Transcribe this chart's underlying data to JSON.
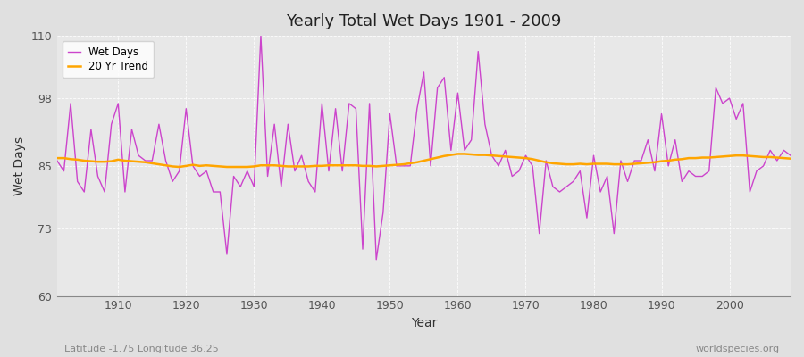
{
  "title": "Yearly Total Wet Days 1901 - 2009",
  "xlabel": "Year",
  "ylabel": "Wet Days",
  "xlim": [
    1901,
    2009
  ],
  "ylim": [
    60,
    110
  ],
  "yticks": [
    60,
    73,
    85,
    98,
    110
  ],
  "xticks": [
    1910,
    1920,
    1930,
    1940,
    1950,
    1960,
    1970,
    1980,
    1990,
    2000
  ],
  "bg_color": "#e0e0e0",
  "plot_bg_color": "#e8e8e8",
  "wet_days_color": "#cc44cc",
  "trend_color": "#FFA500",
  "wet_days_label": "Wet Days",
  "trend_label": "20 Yr Trend",
  "footer_left": "Latitude -1.75 Longitude 36.25",
  "footer_right": "worldspecies.org",
  "years": [
    1901,
    1902,
    1903,
    1904,
    1905,
    1906,
    1907,
    1908,
    1909,
    1910,
    1911,
    1912,
    1913,
    1914,
    1915,
    1916,
    1917,
    1918,
    1919,
    1920,
    1921,
    1922,
    1923,
    1924,
    1925,
    1926,
    1927,
    1928,
    1929,
    1930,
    1931,
    1932,
    1933,
    1934,
    1935,
    1936,
    1937,
    1938,
    1939,
    1940,
    1941,
    1942,
    1943,
    1944,
    1945,
    1946,
    1947,
    1948,
    1949,
    1950,
    1951,
    1952,
    1953,
    1954,
    1955,
    1956,
    1957,
    1958,
    1959,
    1960,
    1961,
    1962,
    1963,
    1964,
    1965,
    1966,
    1967,
    1968,
    1969,
    1970,
    1971,
    1972,
    1973,
    1974,
    1975,
    1976,
    1977,
    1978,
    1979,
    1980,
    1981,
    1982,
    1983,
    1984,
    1985,
    1986,
    1987,
    1988,
    1989,
    1990,
    1991,
    1992,
    1993,
    1994,
    1995,
    1996,
    1997,
    1998,
    1999,
    2000,
    2001,
    2002,
    2003,
    2004,
    2005,
    2006,
    2007,
    2008,
    2009
  ],
  "wet_days": [
    86,
    84,
    97,
    82,
    80,
    92,
    83,
    80,
    93,
    97,
    80,
    92,
    87,
    86,
    86,
    93,
    86,
    82,
    84,
    96,
    85,
    83,
    84,
    80,
    80,
    68,
    83,
    81,
    84,
    81,
    110,
    83,
    93,
    81,
    93,
    84,
    87,
    82,
    80,
    97,
    84,
    96,
    84,
    97,
    96,
    69,
    97,
    67,
    76,
    95,
    85,
    85,
    85,
    96,
    103,
    85,
    100,
    102,
    88,
    99,
    88,
    90,
    107,
    93,
    87,
    85,
    88,
    83,
    84,
    87,
    85,
    72,
    86,
    81,
    80,
    81,
    82,
    84,
    75,
    87,
    80,
    83,
    72,
    86,
    82,
    86,
    86,
    90,
    84,
    95,
    85,
    90,
    82,
    84,
    83,
    83,
    84,
    100,
    97,
    98,
    94,
    97,
    80,
    84,
    85,
    88,
    86,
    88,
    87
  ],
  "trend": [
    86.5,
    86.5,
    86.3,
    86.2,
    86.0,
    85.9,
    85.8,
    85.8,
    85.9,
    86.2,
    86.0,
    85.9,
    85.8,
    85.7,
    85.5,
    85.3,
    85.1,
    84.9,
    84.8,
    85.0,
    85.2,
    85.0,
    85.1,
    85.0,
    84.9,
    84.8,
    84.8,
    84.8,
    84.8,
    84.9,
    85.1,
    85.1,
    85.1,
    85.0,
    84.9,
    84.9,
    84.9,
    84.9,
    85.0,
    85.0,
    85.1,
    85.1,
    85.1,
    85.1,
    85.1,
    85.0,
    85.0,
    84.9,
    85.0,
    85.1,
    85.2,
    85.3,
    85.5,
    85.7,
    86.0,
    86.3,
    86.6,
    86.9,
    87.1,
    87.3,
    87.3,
    87.2,
    87.1,
    87.1,
    87.0,
    86.9,
    86.8,
    86.7,
    86.6,
    86.5,
    86.3,
    86.0,
    85.7,
    85.5,
    85.4,
    85.3,
    85.3,
    85.4,
    85.3,
    85.4,
    85.4,
    85.4,
    85.3,
    85.3,
    85.3,
    85.4,
    85.5,
    85.6,
    85.7,
    85.9,
    86.0,
    86.2,
    86.3,
    86.5,
    86.5,
    86.6,
    86.6,
    86.7,
    86.8,
    86.9,
    87.0,
    87.0,
    86.9,
    86.8,
    86.7,
    86.7,
    86.6,
    86.5,
    86.4
  ]
}
